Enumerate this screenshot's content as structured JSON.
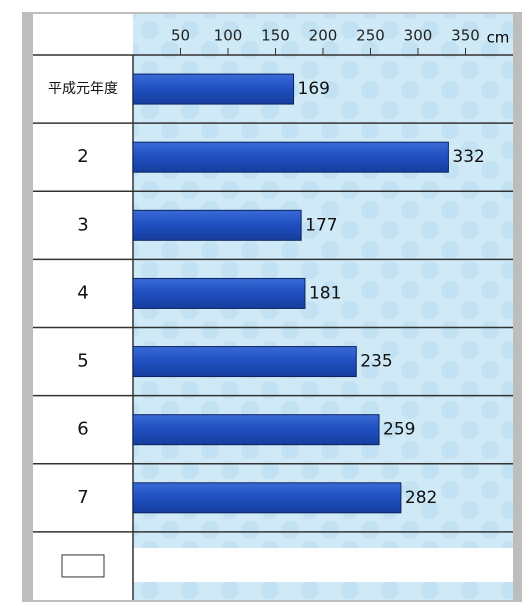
{
  "chart_data": {
    "type": "bar",
    "orientation": "horizontal",
    "unit": "cm",
    "categories": [
      "平成元年度",
      "2",
      "3",
      "4",
      "5",
      "6",
      "7",
      null
    ],
    "values": [
      169,
      332,
      177,
      181,
      235,
      259,
      282,
      null
    ],
    "color": "#1f4fbf",
    "xlim": [
      0,
      400
    ],
    "xticks": [
      50,
      100,
      150,
      200,
      250,
      300,
      350
    ]
  }
}
